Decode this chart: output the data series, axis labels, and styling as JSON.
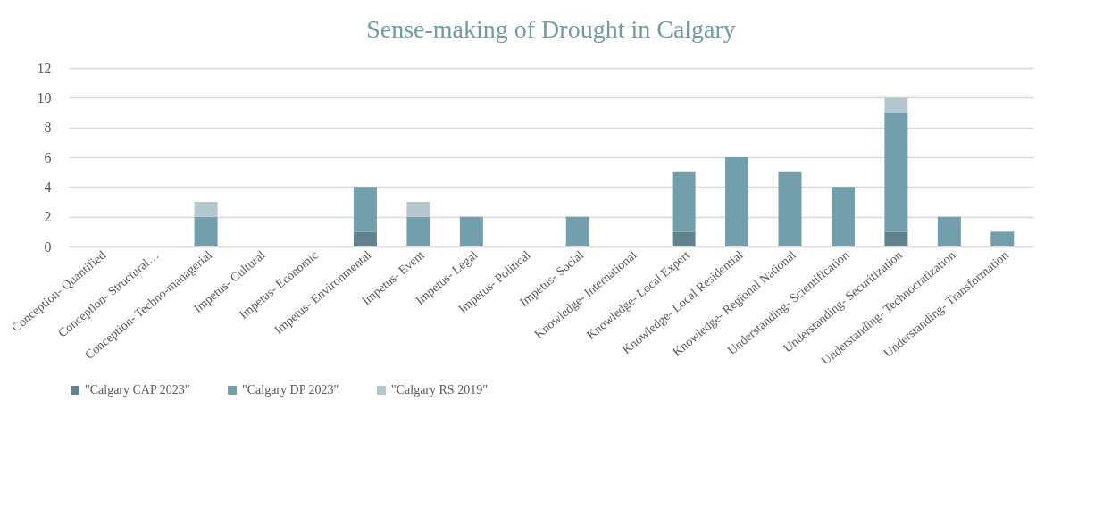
{
  "chart_data": {
    "type": "bar",
    "title": "Sense-making  of Drought  in Calgary",
    "stacked": true,
    "categories": [
      "Conception- Quantified",
      "Conception- Structural…",
      "Conception- Techno-managerial",
      "Impetus- Cultural",
      "Impetus- Economic",
      "Impetus- Environmental",
      "Impetus- Event",
      "Impetus- Legal",
      "Impetus- Political",
      "Impetus- Social",
      "Knowledge- International",
      "Knowledge- Local Expert",
      "Knowledge- Local Residential",
      "Knowledge- Regional National",
      "Understanding- Scientification",
      "Understanding- Securitization",
      "Understanding- Technocratization",
      "Understanding- Transformation"
    ],
    "series": [
      {
        "name": "\"Calgary CAP 2023\"",
        "color": "#62838e",
        "values": [
          0,
          0,
          0,
          0,
          0,
          1,
          0,
          0,
          0,
          0,
          0,
          1,
          0,
          0,
          0,
          1,
          0,
          0
        ]
      },
      {
        "name": "\"Calgary DP 2023\"",
        "color": "#739eab",
        "values": [
          0,
          0,
          2,
          0,
          0,
          3,
          2,
          2,
          0,
          2,
          0,
          4,
          6,
          5,
          4,
          8,
          2,
          1
        ]
      },
      {
        "name": "\"Calgary RS 2019\"",
        "color": "#b4c7ce",
        "values": [
          0,
          0,
          1,
          0,
          0,
          0,
          1,
          0,
          0,
          0,
          0,
          0,
          0,
          0,
          0,
          1,
          0,
          0
        ]
      }
    ],
    "ylim": [
      0,
      12
    ],
    "yticks": [
      0,
      2,
      4,
      6,
      8,
      10,
      12
    ],
    "grid": "y",
    "legend": "bottom"
  }
}
